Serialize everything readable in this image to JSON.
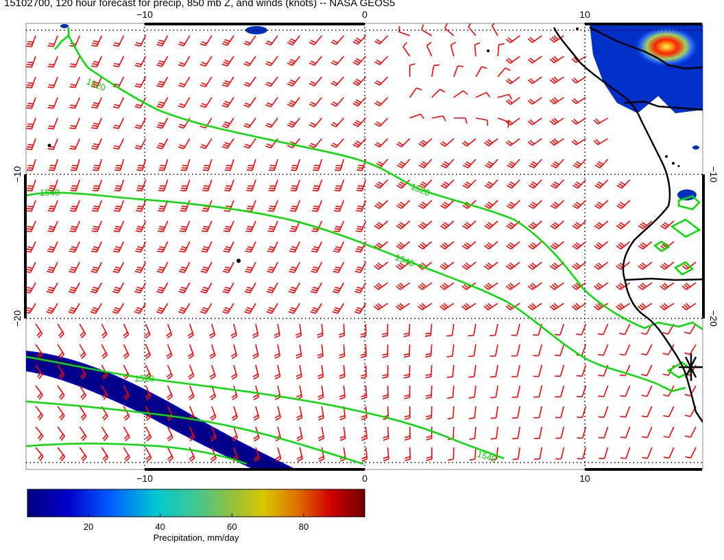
{
  "title": "15102700, 120 hour forecast for precip, 850 mb Z, and winds (knots) -- NASA GEOS5",
  "map": {
    "lon_ticks": [
      -10,
      0,
      10
    ],
    "lat_ticks": [
      -10,
      -20
    ],
    "lon_labels": [
      "−10",
      "0",
      "10"
    ],
    "lat_labels": [
      "−10",
      "−20"
    ],
    "lon_range": [
      -15.5,
      15.5
    ],
    "lat_range": [
      -0.5,
      -30.5
    ],
    "contour_labels": [
      "1520",
      "1540",
      "1520",
      "1540",
      "1520",
      "1540"
    ],
    "colors": {
      "contour": "#00ee00",
      "barb": "#ff0000",
      "coast": "#000000",
      "precip_low": "#00008b",
      "precip_high": "#8b0000"
    }
  },
  "colorbar": {
    "ticks": [
      "20",
      "40",
      "60",
      "80"
    ],
    "title": "Precipitation, mm/day",
    "range": [
      3,
      97
    ],
    "tick_values": [
      20,
      40,
      60,
      80
    ]
  }
}
